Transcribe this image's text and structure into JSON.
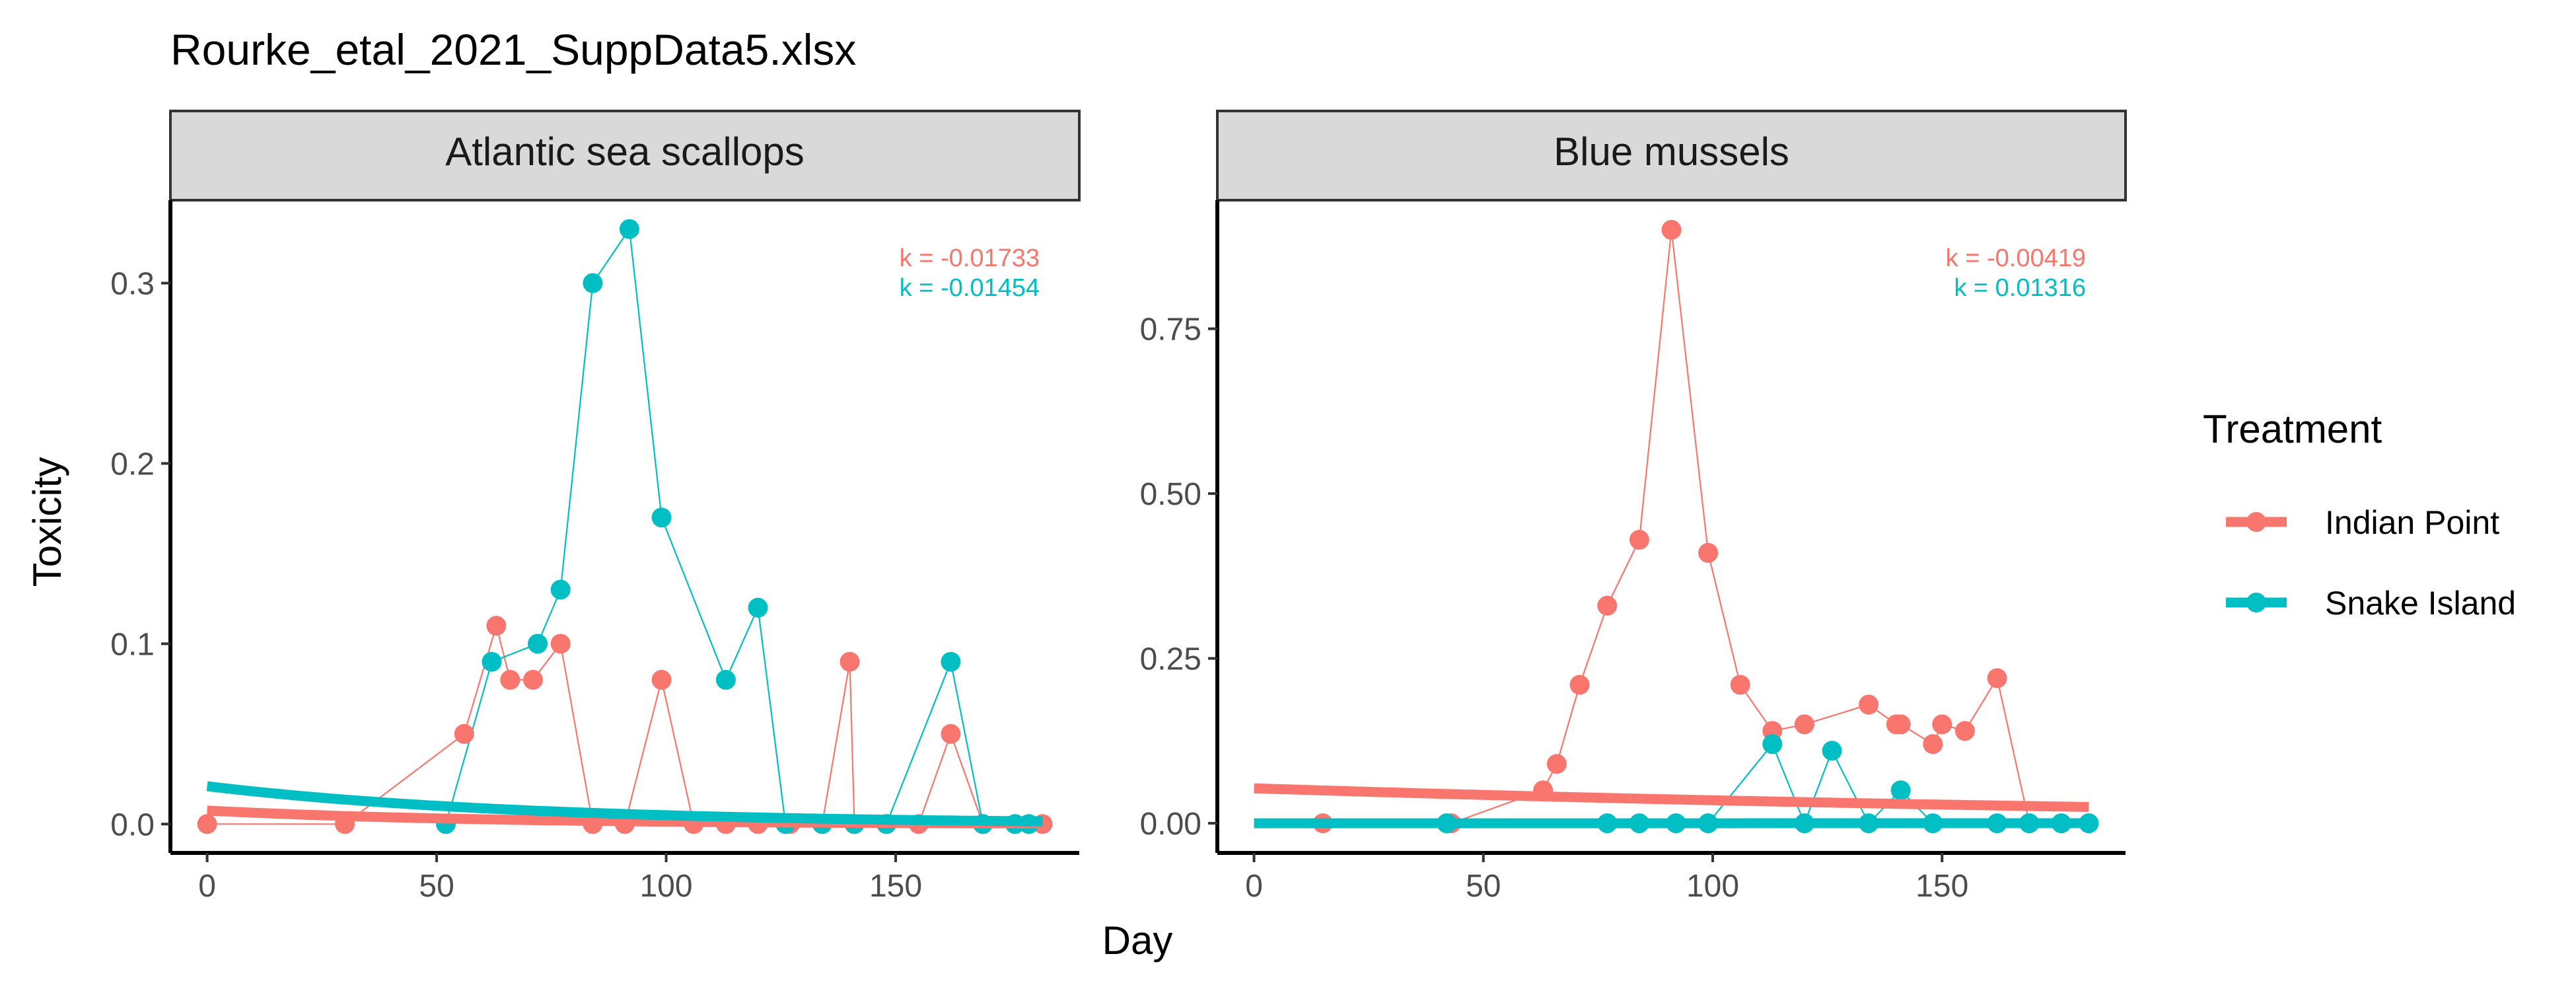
{
  "title": "Rourke_etal_2021_SuppData5.xlsx",
  "xlabel": "Day",
  "ylabel": "Toxicity",
  "legend": {
    "title": "Treatment",
    "items": [
      {
        "label": "Indian Point",
        "color": "#F8766D"
      },
      {
        "label": "Snake Island",
        "color": "#00BFC4"
      }
    ]
  },
  "chart_data": [
    {
      "type": "line",
      "panel": "Atlantic sea scallops",
      "xlim": [
        -8,
        190
      ],
      "ylim": [
        -0.016,
        0.346
      ],
      "x_ticks": [
        0,
        50,
        100,
        150
      ],
      "y_ticks": [
        0.0,
        0.1,
        0.2,
        0.3
      ],
      "y_tick_labels": [
        "0.0",
        "0.1",
        "0.2",
        "0.3"
      ],
      "series": [
        {
          "name": "Indian Point",
          "color": "#F8766D",
          "x": [
            0,
            30,
            56,
            63,
            66,
            71,
            77,
            84,
            91,
            99,
            106,
            113,
            120,
            127,
            134,
            140,
            141,
            148,
            155,
            162,
            169,
            176,
            182
          ],
          "y": [
            0,
            0,
            0.05,
            0.11,
            0.08,
            0.08,
            0.1,
            0,
            0,
            0.08,
            0,
            0,
            0,
            0,
            0,
            0.09,
            0,
            0,
            0,
            0.05,
            0,
            0,
            0
          ],
          "fit": {
            "a": 0.0075,
            "k": -0.01733,
            "label": "k = -0.01733"
          }
        },
        {
          "name": "Snake Island",
          "color": "#00BFC4",
          "x": [
            52,
            62,
            72,
            77,
            84,
            92,
            99,
            113,
            120,
            126,
            134,
            141,
            148,
            162,
            169,
            176,
            179
          ],
          "y": [
            0,
            0.09,
            0.1,
            0.13,
            0.3,
            0.33,
            0.17,
            0.08,
            0.12,
            0,
            0,
            0,
            0,
            0.09,
            0,
            0,
            0
          ],
          "fit": {
            "a": 0.021,
            "k": -0.01454,
            "label": "k = -0.01454"
          }
        }
      ]
    },
    {
      "type": "line",
      "panel": "Blue mussels",
      "xlim": [
        -8,
        190
      ],
      "ylim": [
        -0.045,
        0.945
      ],
      "x_ticks": [
        0,
        50,
        100,
        150
      ],
      "y_ticks": [
        0.0,
        0.25,
        0.5,
        0.75
      ],
      "y_tick_labels": [
        "0.00",
        "0.25",
        "0.50",
        "0.75"
      ],
      "series": [
        {
          "name": "Indian Point",
          "color": "#F8766D",
          "x": [
            15,
            43,
            63,
            66,
            71,
            77,
            84,
            91,
            99,
            106,
            113,
            120,
            134,
            140,
            141,
            148,
            150,
            155,
            162,
            169,
            176,
            182
          ],
          "y": [
            0,
            0,
            0.05,
            0.09,
            0.21,
            0.33,
            0.43,
            0.9,
            0.41,
            0.21,
            0.14,
            0.15,
            0.18,
            0.15,
            0.15,
            0.12,
            0.15,
            0.14,
            0.22,
            0,
            0,
            0
          ],
          "fit": {
            "a": 0.053,
            "k": -0.00419,
            "label": "k = -0.00419"
          }
        },
        {
          "name": "Snake Island",
          "color": "#00BFC4",
          "x": [
            42,
            77,
            84,
            92,
            99,
            113,
            120,
            126,
            134,
            141,
            148,
            162,
            169,
            176,
            182
          ],
          "y": [
            0,
            0,
            0,
            0,
            0,
            0.12,
            0,
            0.11,
            0,
            0.05,
            0,
            0,
            0,
            0,
            0
          ],
          "fit": {
            "a": 1e-05,
            "k": 0.01316,
            "label": "k = 0.01316"
          }
        }
      ]
    }
  ]
}
